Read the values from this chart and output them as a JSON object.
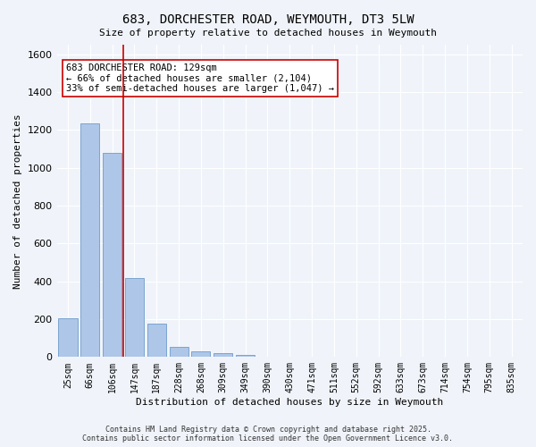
{
  "title": "683, DORCHESTER ROAD, WEYMOUTH, DT3 5LW",
  "subtitle": "Size of property relative to detached houses in Weymouth",
  "xlabel": "Distribution of detached houses by size in Weymouth",
  "ylabel": "Number of detached properties",
  "categories": [
    "25sqm",
    "66sqm",
    "106sqm",
    "147sqm",
    "187sqm",
    "228sqm",
    "268sqm",
    "309sqm",
    "349sqm",
    "390sqm",
    "430sqm",
    "471sqm",
    "511sqm",
    "552sqm",
    "592sqm",
    "633sqm",
    "673sqm",
    "714sqm",
    "754sqm",
    "795sqm",
    "835sqm"
  ],
  "values": [
    205,
    1235,
    1080,
    415,
    175,
    55,
    30,
    20,
    12,
    0,
    0,
    0,
    0,
    0,
    0,
    0,
    0,
    0,
    0,
    0,
    0
  ],
  "bar_color": "#aec6e8",
  "bar_edge_color": "#5a8fc4",
  "vline_x": 2.5,
  "vline_color": "#cc0000",
  "annotation_text": "683 DORCHESTER ROAD: 129sqm\n← 66% of detached houses are smaller (2,104)\n33% of semi-detached houses are larger (1,047) →",
  "annotation_box_color": "#ffffff",
  "annotation_box_edge": "#cc0000",
  "ylim": [
    0,
    1650
  ],
  "yticks": [
    0,
    200,
    400,
    600,
    800,
    1000,
    1200,
    1400,
    1600
  ],
  "background_color": "#f0f4fa",
  "grid_color": "#ffffff",
  "footer": "Contains HM Land Registry data © Crown copyright and database right 2025.\nContains public sector information licensed under the Open Government Licence v3.0."
}
